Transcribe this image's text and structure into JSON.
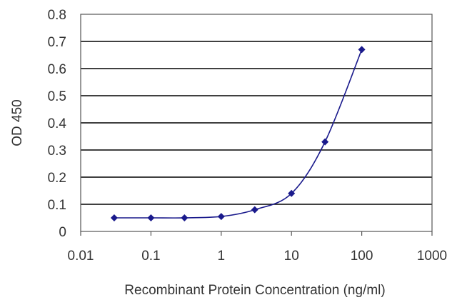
{
  "chart_data": {
    "type": "line",
    "xlabel": "Recombinant Protein Concentration (ng/ml)",
    "ylabel": "OD 450",
    "x_scale": "log",
    "xlim": [
      0.01,
      1000
    ],
    "ylim": [
      0,
      0.8
    ],
    "x_ticks": [
      0.01,
      0.1,
      1,
      10,
      100,
      1000
    ],
    "x_tick_labels": [
      "0.01",
      "0.1",
      "1",
      "10",
      "100",
      "1000"
    ],
    "y_ticks": [
      0,
      0.1,
      0.2,
      0.3,
      0.4,
      0.5,
      0.6,
      0.7,
      0.8
    ],
    "y_tick_labels": [
      "0",
      "0.1",
      "0.2",
      "0.3",
      "0.4",
      "0.5",
      "0.6",
      "0.7",
      "0.8"
    ],
    "grid": "horizontal",
    "colors": {
      "series": "#1a1a8c",
      "grid": "#000000",
      "frame": "#555555"
    },
    "series": [
      {
        "x": [
          0.03,
          0.1,
          0.3,
          1,
          3,
          10,
          30,
          100
        ],
        "y": [
          0.05,
          0.05,
          0.05,
          0.055,
          0.08,
          0.14,
          0.33,
          0.67
        ]
      }
    ]
  }
}
